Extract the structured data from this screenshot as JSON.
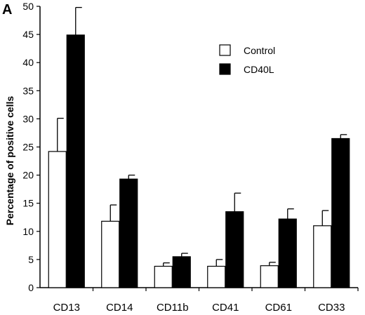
{
  "panel_label": "A",
  "chart_data": {
    "type": "bar",
    "categories": [
      "CD13",
      "CD14",
      "CD11b",
      "CD41",
      "CD61",
      "CD33"
    ],
    "series": [
      {
        "name": "Control",
        "color": "#ffffff",
        "values": [
          24.2,
          11.8,
          3.8,
          3.8,
          3.9,
          11.0
        ],
        "errors": [
          5.9,
          2.9,
          0.6,
          1.2,
          0.6,
          2.7
        ]
      },
      {
        "name": "CD40L",
        "color": "#000000",
        "values": [
          44.9,
          19.3,
          5.5,
          13.5,
          12.2,
          26.5
        ],
        "errors": [
          4.9,
          0.7,
          0.6,
          3.3,
          1.8,
          0.7
        ]
      }
    ],
    "title": "",
    "xlabel": "",
    "ylabel": "Percentage of positive cells",
    "ylim": [
      0,
      50
    ],
    "yticks": [
      0,
      5,
      10,
      15,
      20,
      25,
      30,
      35,
      40,
      45,
      50
    ],
    "legend_position": "top-right",
    "grid": false
  }
}
